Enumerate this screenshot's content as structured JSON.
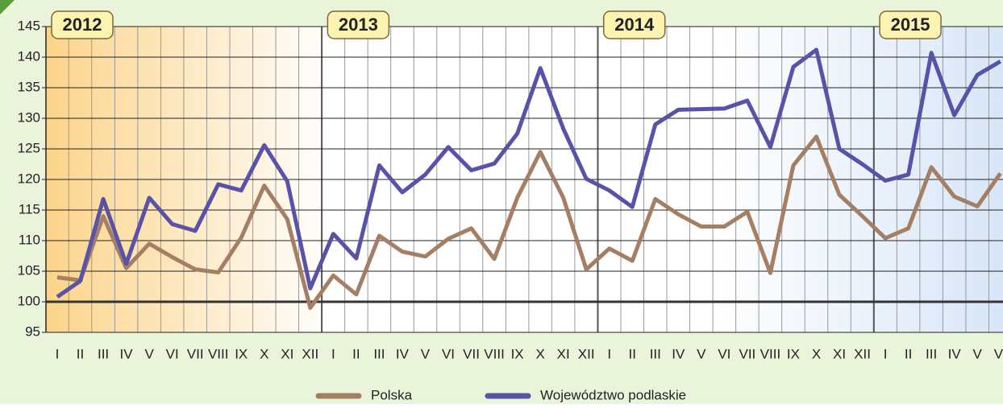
{
  "chart_data": {
    "type": "line",
    "categories": [
      "I",
      "II",
      "III",
      "IV",
      "V",
      "VI",
      "VII",
      "VIII",
      "IX",
      "X",
      "XI",
      "XII",
      "I",
      "II",
      "III",
      "IV",
      "V",
      "VI",
      "VII",
      "VIII",
      "IX",
      "X",
      "XI",
      "XII",
      "I",
      "II",
      "III",
      "IV",
      "V",
      "VI",
      "VII",
      "VIII",
      "IX",
      "X",
      "XI",
      "XII",
      "I",
      "II",
      "III",
      "IV",
      "V",
      "VI"
    ],
    "years": [
      "2012",
      "2013",
      "2014",
      "2015"
    ],
    "series": [
      {
        "name": "Polska",
        "color": "#a57f63",
        "values": [
          104,
          103.5,
          114,
          105.5,
          109.5,
          107.3,
          105.3,
          104.8,
          110.5,
          119,
          113.5,
          99,
          104.3,
          101.2,
          110.8,
          108.2,
          107.4,
          110.3,
          112,
          107,
          117,
          124.5,
          117,
          105.3,
          108.7,
          106.7,
          116.8,
          114.3,
          112.3,
          112.3,
          114.7,
          104.7,
          122.3,
          127,
          117.5,
          114,
          110.4,
          112,
          122,
          117.2,
          115.6,
          121
        ]
      },
      {
        "name": "Województwo podlaskie",
        "color": "#5852a8",
        "values": [
          100.8,
          103.4,
          116.8,
          106.2,
          117,
          112.7,
          111.6,
          119.2,
          118.2,
          125.6,
          119.7,
          102.2,
          111.1,
          107.1,
          122.3,
          117.9,
          120.8,
          125.3,
          121.5,
          122.6,
          127.5,
          138.2,
          128.3,
          120.1,
          118.2,
          115.5,
          129,
          131.4,
          131.5,
          131.6,
          132.9,
          125.3,
          138.4,
          141.2,
          125,
          122.5,
          119.8,
          120.8,
          140.7,
          130.5,
          137.1,
          139.3
        ]
      }
    ],
    "ylim": [
      95,
      145
    ],
    "yticks": [
      95,
      100,
      105,
      110,
      115,
      120,
      125,
      130,
      135,
      140,
      145
    ],
    "grid": true
  }
}
